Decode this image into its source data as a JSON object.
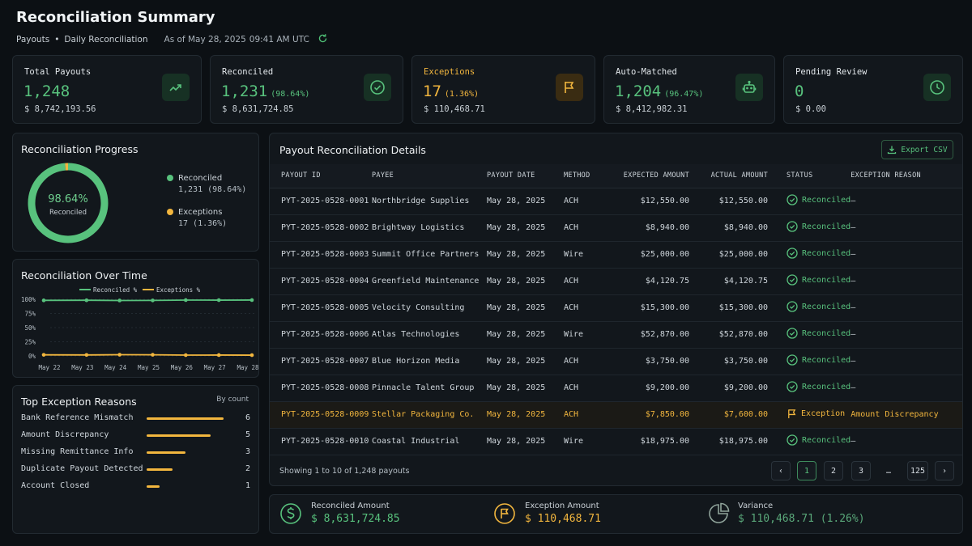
{
  "header": {
    "title": "Reconciliation Summary",
    "breadcrumb_1": "Payouts",
    "breadcrumb_sep": "•",
    "breadcrumb_2": "Daily Reconciliation",
    "as_of": "As of May 28, 2025",
    "time": "09:41 AM UTC"
  },
  "kpis": [
    {
      "label": "Total Payouts",
      "value": "1,248",
      "pct": "",
      "amount": "$ 8,742,193.56",
      "icon": "trend-up-icon"
    },
    {
      "label": "Reconciled",
      "value": "1,231",
      "pct": "(98.64%)",
      "amount": "$ 8,631,724.85",
      "icon": "check-circle-icon"
    },
    {
      "label": "Exceptions",
      "value": "17",
      "pct": "(1.36%)",
      "amount": "$ 110,468.71",
      "icon": "flag-icon"
    },
    {
      "label": "Auto-Matched",
      "value": "1,204",
      "pct": "(96.47%)",
      "amount": "$ 8,412,982.31",
      "icon": "robot-icon"
    },
    {
      "label": "Pending Review",
      "value": "0",
      "pct": "",
      "amount": "$ 0.00",
      "icon": "clock-icon"
    }
  ],
  "progress": {
    "title": "Reconciliation Progress",
    "center_value": "98.64%",
    "center_label": "Reconciled",
    "reconciled_fraction": 0.9864,
    "legend": [
      {
        "label": "Reconciled",
        "sub": "1,231 (98.64%)",
        "color": "#58c27d"
      },
      {
        "label": "Exceptions",
        "sub": "17 (1.36%)",
        "color": "#f2b63e"
      }
    ]
  },
  "over_time": {
    "title": "Reconciliation Over Time",
    "legend_reconciled": "Reconciled %",
    "legend_exceptions": "Exceptions %"
  },
  "chart_data": {
    "type": "line",
    "x": [
      "May 22",
      "May 23",
      "May 24",
      "May 25",
      "May 26",
      "May 27",
      "May 28"
    ],
    "series": [
      {
        "name": "Reconciled %",
        "values": [
          98.1,
          98.3,
          97.9,
          98.0,
          98.6,
          98.5,
          98.64
        ],
        "color": "#58c27d"
      },
      {
        "name": "Exceptions %",
        "values": [
          1.9,
          1.7,
          2.1,
          2.0,
          1.4,
          1.5,
          1.36
        ],
        "color": "#f2b63e"
      }
    ],
    "yticks": [
      "100%",
      "75%",
      "50%",
      "25%",
      "0%"
    ],
    "ylim": [
      0,
      100
    ]
  },
  "exceptions": {
    "title": "Top Exception Reasons",
    "by": "By count",
    "items": [
      {
        "label": "Bank Reference Mismatch",
        "count": "6",
        "value": 6
      },
      {
        "label": "Amount Discrepancy",
        "count": "5",
        "value": 5
      },
      {
        "label": "Missing Remittance Info",
        "count": "3",
        "value": 3
      },
      {
        "label": "Duplicate Payout Detected",
        "count": "2",
        "value": 2
      },
      {
        "label": "Account Closed",
        "count": "1",
        "value": 1
      }
    ]
  },
  "table": {
    "title": "Payout Reconciliation Details",
    "export_label": "Export CSV",
    "columns": [
      "PAYOUT ID",
      "PAYEE",
      "PAYOUT DATE",
      "METHOD",
      "EXPECTED AMOUNT",
      "ACTUAL AMOUNT",
      "STATUS",
      "EXCEPTION REASON"
    ],
    "rows": [
      {
        "id": "PYT-2025-0528-0001",
        "payee": "Northbridge Supplies",
        "date": "May 28, 2025",
        "method": "ACH",
        "expected": "$12,550.00",
        "actual": "$12,550.00",
        "status": "Reconciled",
        "reason": "—"
      },
      {
        "id": "PYT-2025-0528-0002",
        "payee": "Brightway Logistics",
        "date": "May 28, 2025",
        "method": "ACH",
        "expected": "$8,940.00",
        "actual": "$8,940.00",
        "status": "Reconciled",
        "reason": "—"
      },
      {
        "id": "PYT-2025-0528-0003",
        "payee": "Summit Office Partners",
        "date": "May 28, 2025",
        "method": "Wire",
        "expected": "$25,000.00",
        "actual": "$25,000.00",
        "status": "Reconciled",
        "reason": "—"
      },
      {
        "id": "PYT-2025-0528-0004",
        "payee": "Greenfield Maintenance",
        "date": "May 28, 2025",
        "method": "ACH",
        "expected": "$4,120.75",
        "actual": "$4,120.75",
        "status": "Reconciled",
        "reason": "—"
      },
      {
        "id": "PYT-2025-0528-0005",
        "payee": "Velocity Consulting",
        "date": "May 28, 2025",
        "method": "ACH",
        "expected": "$15,300.00",
        "actual": "$15,300.00",
        "status": "Reconciled",
        "reason": "—"
      },
      {
        "id": "PYT-2025-0528-0006",
        "payee": "Atlas Technologies",
        "date": "May 28, 2025",
        "method": "Wire",
        "expected": "$52,870.00",
        "actual": "$52,870.00",
        "status": "Reconciled",
        "reason": "—"
      },
      {
        "id": "PYT-2025-0528-0007",
        "payee": "Blue Horizon Media",
        "date": "May 28, 2025",
        "method": "ACH",
        "expected": "$3,750.00",
        "actual": "$3,750.00",
        "status": "Reconciled",
        "reason": "—"
      },
      {
        "id": "PYT-2025-0528-0008",
        "payee": "Pinnacle Talent Group",
        "date": "May 28, 2025",
        "method": "ACH",
        "expected": "$9,200.00",
        "actual": "$9,200.00",
        "status": "Reconciled",
        "reason": "—"
      },
      {
        "id": "PYT-2025-0528-0009",
        "payee": "Stellar Packaging Co.",
        "date": "May 28, 2025",
        "method": "ACH",
        "expected": "$7,850.00",
        "actual": "$7,600.00",
        "status": "Exception",
        "reason": "Amount Discrepancy"
      },
      {
        "id": "PYT-2025-0528-0010",
        "payee": "Coastal Industrial",
        "date": "May 28, 2025",
        "method": "Wire",
        "expected": "$18,975.00",
        "actual": "$18,975.00",
        "status": "Reconciled",
        "reason": "—"
      }
    ],
    "showing": "Showing 1 to 10 of 1,248 payouts",
    "pages": [
      "1",
      "2",
      "3",
      "…",
      "125"
    ],
    "prev": "‹",
    "next": "›"
  },
  "summary": {
    "reconciled_label": "Reconciled Amount",
    "reconciled_value": "$ 8,631,724.85",
    "exception_label": "Exception Amount",
    "exception_value": "$ 110,468.71",
    "variance_label": "Variance",
    "variance_value": "$ 110,468.71 (1.26%)"
  },
  "colors": {
    "accent": "#58c27d",
    "warning": "#f2b63e",
    "background": "#0c1014"
  }
}
